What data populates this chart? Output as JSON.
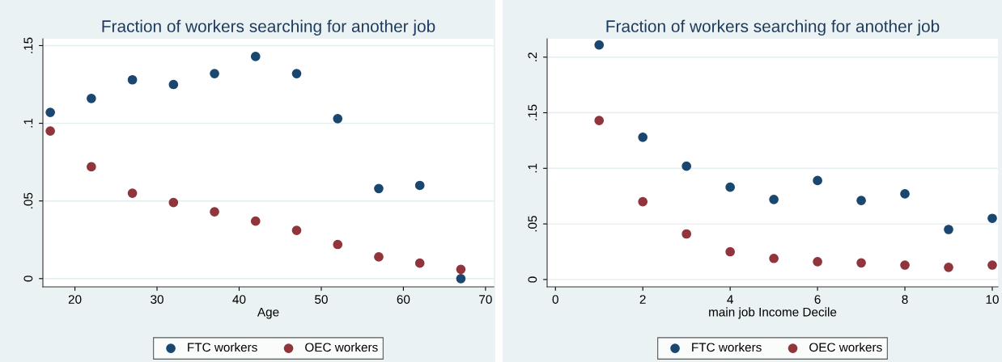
{
  "chart_data": [
    {
      "type": "scatter",
      "title": "Fraction of workers searching for another job",
      "xlabel": "Age",
      "x": [
        17,
        22,
        27,
        32,
        37,
        42,
        47,
        52,
        57,
        62,
        67
      ],
      "series": [
        {
          "name": "FTC workers",
          "color": "#1a476f",
          "values": [
            0.107,
            0.116,
            0.128,
            0.125,
            0.132,
            0.143,
            0.132,
            0.103,
            0.058,
            0.06,
            0.0
          ]
        },
        {
          "name": "OEC workers",
          "color": "#90353b",
          "values": [
            0.095,
            0.072,
            0.055,
            0.049,
            0.043,
            0.037,
            0.031,
            0.022,
            0.014,
            0.01,
            0.006
          ]
        }
      ],
      "xlim": [
        16.1,
        71.0
      ],
      "ylim": [
        -0.0053,
        0.1544
      ],
      "xticks": [
        20,
        30,
        40,
        50,
        60,
        70
      ],
      "yticks": [
        {
          "value": 0,
          "label": "0"
        },
        {
          "value": 0.05,
          "label": ".05"
        },
        {
          "value": 0.1,
          "label": ".1"
        },
        {
          "value": 0.15,
          "label": ".15"
        }
      ],
      "grid": "y",
      "legend": "bottom",
      "marker": "circle"
    },
    {
      "type": "scatter",
      "title": "Fraction of workers searching for another job",
      "xlabel": "main job Income Decile",
      "x": [
        1,
        2,
        3,
        4,
        5,
        6,
        7,
        8,
        9,
        10
      ],
      "series": [
        {
          "name": "FTC workers",
          "color": "#1a476f",
          "values": [
            0.211,
            0.128,
            0.102,
            0.083,
            0.072,
            0.089,
            0.071,
            0.077,
            0.045,
            0.055
          ]
        },
        {
          "name": "OEC workers",
          "color": "#90353b",
          "values": [
            0.143,
            0.07,
            0.041,
            0.025,
            0.019,
            0.016,
            0.015,
            0.013,
            0.011,
            0.013
          ]
        }
      ],
      "xlim": [
        -0.19,
        10.13
      ],
      "ylim": [
        -0.0066,
        0.2165
      ],
      "xticks": [
        0,
        2,
        4,
        6,
        8,
        10
      ],
      "yticks": [
        {
          "value": 0,
          "label": "0"
        },
        {
          "value": 0.05,
          "label": ".05"
        },
        {
          "value": 0.1,
          "label": ".1"
        },
        {
          "value": 0.15,
          "label": ".15"
        },
        {
          "value": 0.2,
          "label": ".2"
        }
      ],
      "grid": "y",
      "legend": "bottom",
      "marker": "circle"
    }
  ]
}
